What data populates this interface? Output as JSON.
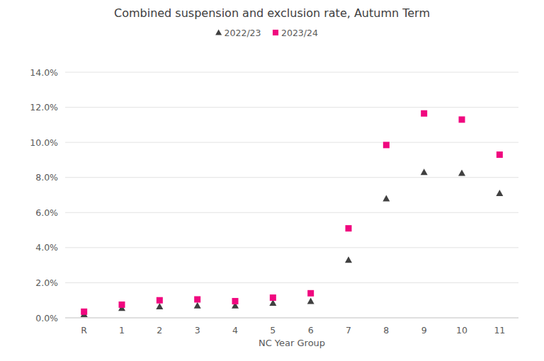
{
  "chart_data": {
    "type": "scatter",
    "title": "Combined suspension and exclusion rate, Autumn Term",
    "x_label": "NC Year Group",
    "categories": [
      "R",
      "1",
      "2",
      "3",
      "4",
      "5",
      "6",
      "7",
      "8",
      "9",
      "10",
      "11"
    ],
    "series": [
      {
        "name": "2022/23",
        "color": "#404040",
        "marker": "triangle",
        "values": [
          0.2,
          0.55,
          0.65,
          0.7,
          0.7,
          0.85,
          0.95,
          3.3,
          6.8,
          8.3,
          8.25,
          7.1
        ]
      },
      {
        "name": "2023/24",
        "color": "#f0077f",
        "marker": "square",
        "values": [
          0.35,
          0.75,
          1.0,
          1.05,
          0.95,
          1.15,
          1.4,
          5.1,
          9.85,
          11.65,
          11.3,
          9.3
        ]
      }
    ],
    "ylim": [
      0,
      14
    ],
    "yticks": [
      {
        "value": 0,
        "label": "0.0%"
      },
      {
        "value": 2,
        "label": "2.0%"
      },
      {
        "value": 4,
        "label": "4.0%"
      },
      {
        "value": 6,
        "label": "6.0%"
      },
      {
        "value": 8,
        "label": "8.0%"
      },
      {
        "value": 10,
        "label": "10.0%"
      },
      {
        "value": 12,
        "label": "12.0%"
      },
      {
        "value": 14,
        "label": "14.0%"
      }
    ],
    "grid": true,
    "legend": "top"
  }
}
